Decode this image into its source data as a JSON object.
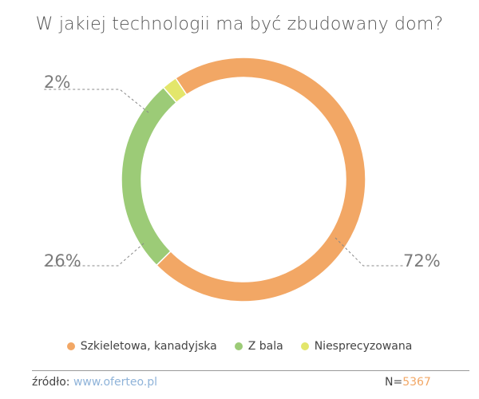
{
  "chart_data": {
    "type": "pie",
    "title": "W jakiej technologii ma być zbudowany dom?",
    "categories": [
      "Szkieletowa, kanadyjska",
      "Z bala",
      "Niesprecyzowana"
    ],
    "values": [
      72,
      26,
      2
    ],
    "value_labels": [
      "72%",
      "26%",
      "2%"
    ],
    "colors": [
      "#f2a765",
      "#9ccb77",
      "#e3e66b"
    ],
    "donut": true,
    "legend_position": "bottom"
  },
  "footer": {
    "source_label": "źródło:",
    "source_link": "www.oferteo.pl",
    "n_label": "N=",
    "n_value": "5367"
  }
}
